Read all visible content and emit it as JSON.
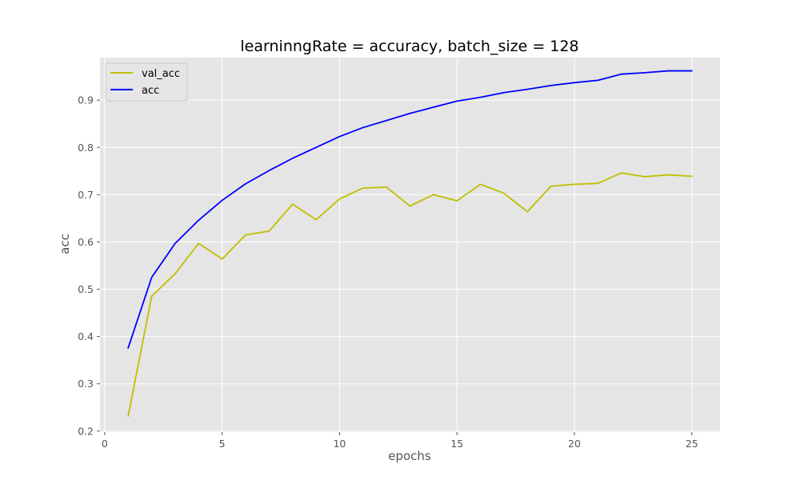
{
  "chart_data": {
    "type": "line",
    "title": "learninngRate = accuracy, batch_size = 128",
    "xlabel": "epochs",
    "ylabel": "acc",
    "xlim": [
      -0.2,
      26.2
    ],
    "ylim": [
      0.198,
      0.99
    ],
    "xticks": [
      0,
      5,
      10,
      15,
      20,
      25
    ],
    "yticks": [
      0.2,
      0.3,
      0.4,
      0.5,
      0.6,
      0.7,
      0.8,
      0.9
    ],
    "grid": true,
    "legend_position": "top-left",
    "background_color": "#e5e5e5",
    "grid_color": "#ffffff",
    "x": [
      1,
      2,
      3,
      4,
      5,
      6,
      7,
      8,
      9,
      10,
      11,
      12,
      13,
      14,
      15,
      16,
      17,
      18,
      19,
      20,
      21,
      22,
      23,
      24,
      25
    ],
    "series": [
      {
        "name": "val_acc",
        "color": "#bfbf00",
        "values": [
          0.232,
          0.485,
          0.533,
          0.597,
          0.564,
          0.615,
          0.623,
          0.68,
          0.647,
          0.691,
          0.714,
          0.716,
          0.676,
          0.7,
          0.687,
          0.722,
          0.703,
          0.664,
          0.718,
          0.722,
          0.724,
          0.746,
          0.738,
          0.742,
          0.739
        ]
      },
      {
        "name": "acc",
        "color": "#0000ff",
        "values": [
          0.376,
          0.525,
          0.597,
          0.646,
          0.688,
          0.723,
          0.751,
          0.777,
          0.8,
          0.823,
          0.842,
          0.857,
          0.872,
          0.885,
          0.898,
          0.906,
          0.916,
          0.923,
          0.931,
          0.937,
          0.942,
          0.955,
          0.958,
          0.962,
          0.962
        ]
      }
    ]
  }
}
